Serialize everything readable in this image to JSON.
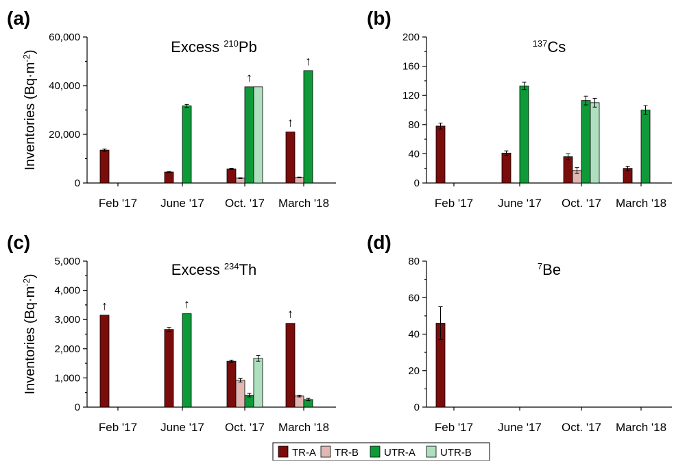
{
  "figure": {
    "legend": [
      {
        "name": "TR-A",
        "color": "#7b0c0c"
      },
      {
        "name": "TR-B",
        "color": "#e0b7b2"
      },
      {
        "name": "UTR-A",
        "color": "#0f9a3a"
      },
      {
        "name": "UTR-B",
        "color": "#aee0bf"
      }
    ],
    "arrow_glyph": "↑"
  },
  "chart_data": [
    {
      "type": "bar",
      "panel": "(a)",
      "title_main": "Excess ",
      "title_sup": "210",
      "title_suffix": "Pb",
      "ylabel": "Inventories (Bq·m",
      "ylabel_sup": "-2",
      "ylabel_end": ")",
      "categories": [
        "Feb '17",
        "June '17",
        "Oct. '17",
        "March '18"
      ],
      "ylim": [
        0,
        60000
      ],
      "yticks": [
        0,
        20000,
        40000,
        60000
      ],
      "ytick_labels": [
        "0",
        "20,000",
        "40,000",
        "60,000"
      ],
      "minor_ticks": true,
      "series": [
        {
          "name": "TR-A",
          "values": [
            13500,
            4500,
            5800,
            21000
          ],
          "errors": [
            500,
            200,
            250,
            0
          ],
          "arrows": [
            false,
            false,
            false,
            true
          ]
        },
        {
          "name": "TR-B",
          "values": [
            null,
            null,
            2000,
            2300
          ],
          "errors": [
            0,
            0,
            150,
            150
          ],
          "arrows": [
            false,
            false,
            false,
            false
          ]
        },
        {
          "name": "UTR-A",
          "values": [
            null,
            31700,
            39500,
            46200
          ],
          "errors": [
            0,
            600,
            0,
            0
          ],
          "arrows": [
            false,
            false,
            true,
            true
          ]
        },
        {
          "name": "UTR-B",
          "values": [
            null,
            null,
            39500,
            null
          ],
          "errors": [
            0,
            0,
            0,
            0
          ],
          "arrows": [
            false,
            false,
            false,
            false
          ]
        }
      ]
    },
    {
      "type": "bar",
      "panel": "(b)",
      "title_main": "",
      "title_sup": "137",
      "title_suffix": "Cs",
      "ylabel": "",
      "ylabel_sup": "",
      "ylabel_end": "",
      "categories": [
        "Feb '17",
        "June '17",
        "Oct. '17",
        "March '18"
      ],
      "ylim": [
        0,
        200
      ],
      "yticks": [
        0,
        40,
        80,
        120,
        160,
        200
      ],
      "ytick_labels": [
        "0",
        "40",
        "80",
        "120",
        "160",
        "200"
      ],
      "minor_ticks": true,
      "series": [
        {
          "name": "TR-A",
          "values": [
            78,
            41,
            36,
            20
          ],
          "errors": [
            4,
            3,
            4,
            3
          ],
          "arrows": [
            false,
            false,
            false,
            false
          ]
        },
        {
          "name": "TR-B",
          "values": [
            null,
            null,
            17,
            null
          ],
          "errors": [
            0,
            0,
            4,
            0
          ],
          "arrows": [
            false,
            false,
            false,
            false
          ]
        },
        {
          "name": "UTR-A",
          "values": [
            null,
            133,
            113,
            100
          ],
          "errors": [
            0,
            5,
            6,
            6
          ],
          "arrows": [
            false,
            false,
            false,
            false
          ]
        },
        {
          "name": "UTR-B",
          "values": [
            null,
            null,
            110,
            null
          ],
          "errors": [
            0,
            0,
            6,
            0
          ],
          "arrows": [
            false,
            false,
            false,
            false
          ]
        }
      ]
    },
    {
      "type": "bar",
      "panel": "(c)",
      "title_main": "Excess ",
      "title_sup": "234",
      "title_suffix": "Th",
      "ylabel": "Inventories (Bq·m",
      "ylabel_sup": "-2",
      "ylabel_end": ")",
      "categories": [
        "Feb '17",
        "June '17",
        "Oct. '17",
        "March '18"
      ],
      "ylim": [
        0,
        5000
      ],
      "yticks": [
        0,
        1000,
        2000,
        3000,
        4000,
        5000
      ],
      "ytick_labels": [
        "0",
        "1,000",
        "2,000",
        "3,000",
        "4,000",
        "5,000"
      ],
      "minor_ticks": true,
      "series": [
        {
          "name": "TR-A",
          "values": [
            3150,
            2660,
            1570,
            2870
          ],
          "errors": [
            0,
            70,
            40,
            0
          ],
          "arrows": [
            true,
            false,
            false,
            true
          ]
        },
        {
          "name": "TR-B",
          "values": [
            null,
            null,
            920,
            380
          ],
          "errors": [
            0,
            0,
            60,
            30
          ],
          "arrows": [
            false,
            false,
            false,
            false
          ]
        },
        {
          "name": "UTR-A",
          "values": [
            null,
            3200,
            410,
            260
          ],
          "errors": [
            0,
            0,
            60,
            40
          ],
          "arrows": [
            false,
            true,
            false,
            false
          ]
        },
        {
          "name": "UTR-B",
          "values": [
            null,
            null,
            1670,
            null
          ],
          "errors": [
            0,
            0,
            100,
            0
          ],
          "arrows": [
            false,
            false,
            false,
            false
          ]
        }
      ]
    },
    {
      "type": "bar",
      "panel": "(d)",
      "title_main": "",
      "title_sup": "7",
      "title_suffix": "Be",
      "ylabel": "",
      "ylabel_sup": "",
      "ylabel_end": "",
      "categories": [
        "Feb '17",
        "June '17",
        "Oct. '17",
        "March '18"
      ],
      "ylim": [
        0,
        80
      ],
      "yticks": [
        0,
        20,
        40,
        60,
        80
      ],
      "ytick_labels": [
        "0",
        "20",
        "40",
        "60",
        "80"
      ],
      "minor_ticks": true,
      "series": [
        {
          "name": "TR-A",
          "values": [
            46,
            null,
            null,
            null
          ],
          "errors": [
            9,
            0,
            0,
            0
          ],
          "arrows": [
            false,
            false,
            false,
            false
          ]
        },
        {
          "name": "TR-B",
          "values": [
            null,
            null,
            null,
            null
          ],
          "errors": [
            0,
            0,
            0,
            0
          ],
          "arrows": [
            false,
            false,
            false,
            false
          ]
        },
        {
          "name": "UTR-A",
          "values": [
            null,
            null,
            null,
            null
          ],
          "errors": [
            0,
            0,
            0,
            0
          ],
          "arrows": [
            false,
            false,
            false,
            false
          ]
        },
        {
          "name": "UTR-B",
          "values": [
            null,
            null,
            null,
            null
          ],
          "errors": [
            0,
            0,
            0,
            0
          ],
          "arrows": [
            false,
            false,
            false,
            false
          ]
        }
      ]
    }
  ]
}
